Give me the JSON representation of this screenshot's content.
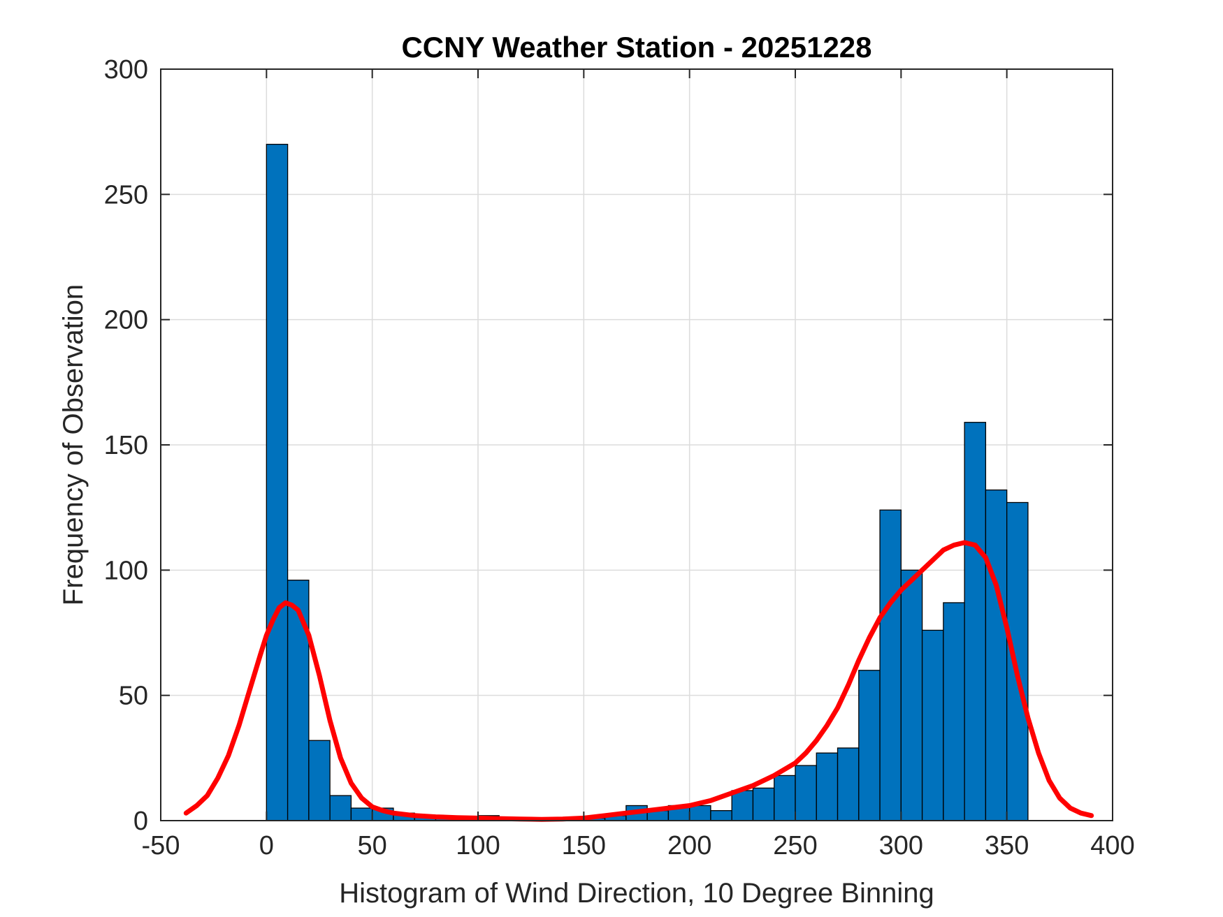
{
  "chart_data": {
    "type": "bar",
    "title": "CCNY Weather Station - 20251228",
    "xlabel": "Histogram of Wind Direction, 10 Degree Binning",
    "ylabel": "Frequency of Observation",
    "xlim": [
      -50,
      400
    ],
    "ylim": [
      0,
      300
    ],
    "xticks": [
      -50,
      0,
      50,
      100,
      150,
      200,
      250,
      300,
      350,
      400
    ],
    "yticks": [
      0,
      50,
      100,
      150,
      200,
      250,
      300
    ],
    "xtick_labels": [
      "-50",
      "0",
      "50",
      "100",
      "150",
      "200",
      "250",
      "300",
      "350",
      "400"
    ],
    "ytick_labels": [
      "0",
      "50",
      "100",
      "150",
      "200",
      "250",
      "300"
    ],
    "grid": true,
    "bin_width": 10,
    "bins": [
      {
        "x0": 0,
        "x1": 10,
        "count": 270
      },
      {
        "x0": 10,
        "x1": 20,
        "count": 96
      },
      {
        "x0": 20,
        "x1": 30,
        "count": 32
      },
      {
        "x0": 30,
        "x1": 40,
        "count": 10
      },
      {
        "x0": 40,
        "x1": 50,
        "count": 5
      },
      {
        "x0": 50,
        "x1": 60,
        "count": 5
      },
      {
        "x0": 60,
        "x1": 70,
        "count": 3
      },
      {
        "x0": 70,
        "x1": 80,
        "count": 2
      },
      {
        "x0": 80,
        "x1": 90,
        "count": 1
      },
      {
        "x0": 90,
        "x1": 100,
        "count": 1
      },
      {
        "x0": 100,
        "x1": 110,
        "count": 2
      },
      {
        "x0": 110,
        "x1": 120,
        "count": 1
      },
      {
        "x0": 120,
        "x1": 130,
        "count": 1
      },
      {
        "x0": 130,
        "x1": 140,
        "count": 0
      },
      {
        "x0": 140,
        "x1": 150,
        "count": 1
      },
      {
        "x0": 150,
        "x1": 160,
        "count": 1
      },
      {
        "x0": 160,
        "x1": 170,
        "count": 2
      },
      {
        "x0": 170,
        "x1": 180,
        "count": 6
      },
      {
        "x0": 180,
        "x1": 190,
        "count": 4
      },
      {
        "x0": 190,
        "x1": 200,
        "count": 6
      },
      {
        "x0": 200,
        "x1": 210,
        "count": 6
      },
      {
        "x0": 210,
        "x1": 220,
        "count": 4
      },
      {
        "x0": 220,
        "x1": 230,
        "count": 12
      },
      {
        "x0": 230,
        "x1": 240,
        "count": 13
      },
      {
        "x0": 240,
        "x1": 250,
        "count": 18
      },
      {
        "x0": 250,
        "x1": 260,
        "count": 22
      },
      {
        "x0": 260,
        "x1": 270,
        "count": 27
      },
      {
        "x0": 270,
        "x1": 280,
        "count": 29
      },
      {
        "x0": 280,
        "x1": 290,
        "count": 60
      },
      {
        "x0": 290,
        "x1": 300,
        "count": 124
      },
      {
        "x0": 300,
        "x1": 310,
        "count": 100
      },
      {
        "x0": 310,
        "x1": 320,
        "count": 76
      },
      {
        "x0": 320,
        "x1": 330,
        "count": 87
      },
      {
        "x0": 330,
        "x1": 340,
        "count": 159
      },
      {
        "x0": 340,
        "x1": 350,
        "count": 132
      },
      {
        "x0": 350,
        "x1": 360,
        "count": 127
      }
    ],
    "density_curve": {
      "x": [
        -38,
        -33,
        -28,
        -23,
        -18,
        -13,
        -8,
        -3,
        0,
        3,
        6,
        9,
        12,
        15,
        20,
        25,
        30,
        35,
        40,
        45,
        50,
        55,
        60,
        70,
        80,
        90,
        100,
        110,
        120,
        130,
        140,
        150,
        160,
        170,
        180,
        190,
        200,
        210,
        220,
        230,
        240,
        250,
        255,
        260,
        265,
        270,
        275,
        280,
        285,
        290,
        295,
        300,
        305,
        310,
        315,
        320,
        325,
        330,
        335,
        340,
        345,
        350,
        355,
        360,
        365,
        370,
        375,
        380,
        385,
        390
      ],
      "y": [
        3,
        6,
        10,
        17,
        26,
        38,
        52,
        66,
        74,
        80,
        85,
        87,
        86,
        84,
        74,
        58,
        40,
        25,
        15,
        9,
        5.5,
        4,
        3,
        2,
        1.5,
        1.2,
        1,
        0.8,
        0.6,
        0.5,
        0.6,
        1,
        2,
        3,
        4,
        5,
        6,
        8,
        11,
        14,
        18,
        23,
        27,
        32,
        38,
        45,
        54,
        64,
        73,
        81,
        87,
        92,
        96,
        100,
        104,
        108,
        110,
        111,
        110,
        105,
        94,
        77,
        58,
        41,
        27,
        16,
        9,
        5,
        3,
        2
      ]
    },
    "colors": {
      "bar_fill": "#0072bd",
      "bar_edge": "#000000",
      "curve": "#ff0000",
      "grid": "#dcdcdc",
      "axis": "#262626"
    }
  }
}
